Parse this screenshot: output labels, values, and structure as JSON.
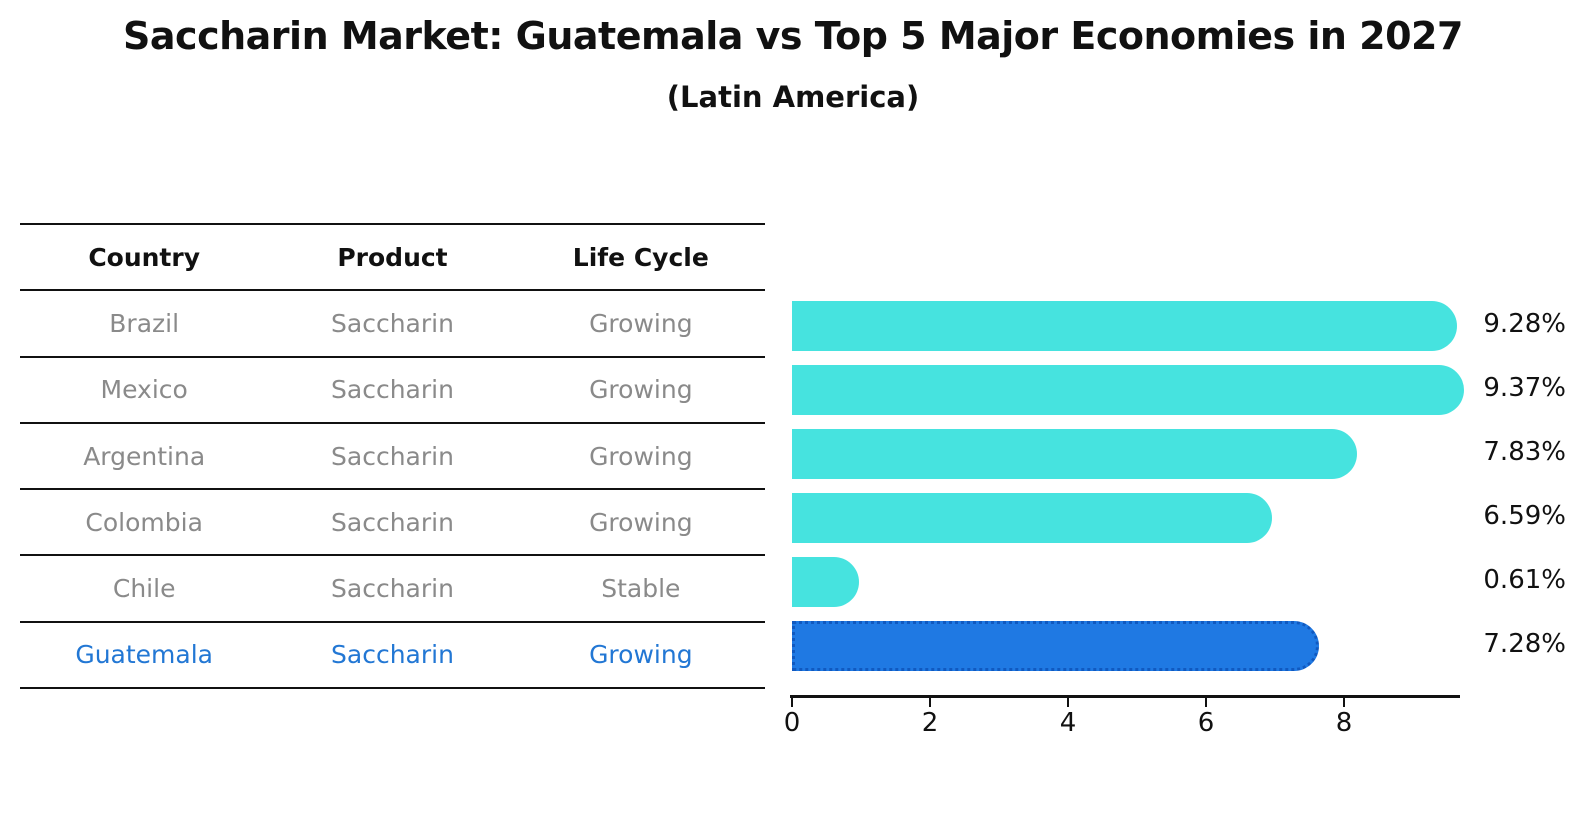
{
  "title": "Saccharin Market: Guatemala vs Top 5 Major Economies in 2027",
  "subtitle": "(Latin America)",
  "table": {
    "headers": [
      "Country",
      "Product",
      "Life Cycle"
    ],
    "rows": [
      {
        "country": "Brazil",
        "product": "Saccharin",
        "life_cycle": "Growing",
        "highlight": false
      },
      {
        "country": "Mexico",
        "product": "Saccharin",
        "life_cycle": "Growing",
        "highlight": false
      },
      {
        "country": "Argentina",
        "product": "Saccharin",
        "life_cycle": "Growing",
        "highlight": false
      },
      {
        "country": "Colombia",
        "product": "Saccharin",
        "life_cycle": "Growing",
        "highlight": false
      },
      {
        "country": "Chile",
        "product": "Saccharin",
        "life_cycle": "Stable",
        "highlight": false
      },
      {
        "country": "Guatemala",
        "product": "Saccharin",
        "life_cycle": "Growing",
        "highlight": true
      }
    ]
  },
  "chart_data": {
    "type": "bar",
    "orientation": "horizontal",
    "title": "Saccharin Market: Guatemala vs Top 5 Major Economies in 2027",
    "subtitle": "(Latin America)",
    "categories": [
      "Brazil",
      "Mexico",
      "Argentina",
      "Colombia",
      "Chile",
      "Guatemala"
    ],
    "values": [
      9.28,
      9.37,
      7.83,
      6.59,
      0.61,
      7.28
    ],
    "value_labels": [
      "9.28%",
      "9.37%",
      "7.83%",
      "6.59%",
      "0.61%",
      "7.28%"
    ],
    "xlim": [
      0,
      9.7
    ],
    "xticks": [
      0,
      2,
      4,
      6,
      8
    ],
    "grid": false,
    "legend": false,
    "highlight_category": "Guatemala",
    "colors": {
      "bar": "#46E3DF",
      "highlight_bar": "#1F79E3",
      "highlight_edge": "#1059C0",
      "highlight_text": "#2277D4",
      "muted_text": "#8A8A8A",
      "axis_text": "#111111"
    }
  }
}
